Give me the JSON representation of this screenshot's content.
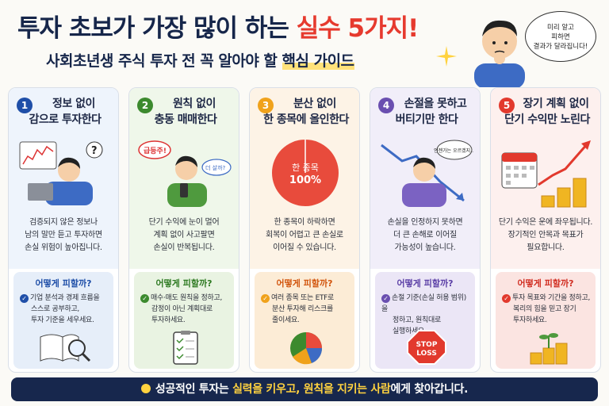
{
  "header": {
    "title_main": "투자 초보가 가장 많이 하는 ",
    "title_accent": "실수 5가지!",
    "subtitle_main": "사회초년생 주식 투자 전 꼭 알아야 할 ",
    "subtitle_hl": "핵심 가이드",
    "speech": [
      "미리 알고",
      "피하면",
      "결과가 달라집니다!"
    ]
  },
  "cards": [
    {
      "num": "1",
      "title": [
        "정보 없이",
        "감으로 투자한다"
      ],
      "desc": [
        "검증되지 않은 정보나",
        "남의 말만 듣고 투자하면",
        "손실 위험이 높아집니다."
      ],
      "how": "어떻게 피할까?",
      "tip": [
        "기업 분석과 경제 흐름을",
        "스스로 공부하고,",
        "투자 기준을 세우세요."
      ]
    },
    {
      "num": "2",
      "title": [
        "원칙 없이",
        "충동 매매한다"
      ],
      "bubble1": "급등주!",
      "bubble2": "더 살까?",
      "desc": [
        "단기 수익에 눈이 멀어",
        "계획 없이 사고팔면",
        "손실이 반복됩니다."
      ],
      "how": "어떻게 피할까?",
      "tip": [
        "매수·매도 원칙을 정하고,",
        "감정이 아닌 계획대로",
        "투자하세요."
      ]
    },
    {
      "num": "3",
      "title": [
        "분산 없이",
        "한 종목에 올인한다"
      ],
      "pie_label": [
        "한 종목",
        "100%"
      ],
      "desc": [
        "한 종목이 하락하면",
        "회복이 어렵고 큰 손실로",
        "이어질 수 있습니다."
      ],
      "how": "어떻게 피할까?",
      "tip": [
        "여러 종목 또는 ETF로",
        "분산 투자해 리스크를",
        "줄이세요."
      ]
    },
    {
      "num": "4",
      "title": [
        "손절을 못하고",
        "버티기만 한다"
      ],
      "bubble1": "언젠가는 오르겠지...",
      "desc": [
        "손실을 인정하지 못하면",
        "더 큰 손해로 이어질",
        "가능성이 높습니다."
      ],
      "how": "어떻게 피할까?",
      "tip": [
        "손절 기준(손실 허용 범위)을",
        "정하고, 원칙대로",
        "실행하세요."
      ],
      "sign": [
        "STOP",
        "LOSS"
      ]
    },
    {
      "num": "5",
      "title": [
        "장기 계획 없이",
        "단기 수익만 노린다"
      ],
      "desc": [
        "단기 수익은 운에 좌우됩니다.",
        "장기적인 안목과 목표가",
        "필요합니다."
      ],
      "how": "어떻게 피할까?",
      "tip": [
        "투자 목표와 기간을 정하고,",
        "복리의 힘을 믿고 장기",
        "투자하세요."
      ]
    }
  ],
  "footer": {
    "pre": "성공적인 투자는 ",
    "y1": "실력을 키우고, 원칙을 지키는 사람",
    "post": "에게 찾아갑니다."
  },
  "colors": {
    "navy": "#17274d",
    "red": "#e63a2e",
    "blue": "#1f4fa8",
    "green": "#3c8a2e",
    "orange": "#f0a21b",
    "purple": "#6a4fb0"
  }
}
